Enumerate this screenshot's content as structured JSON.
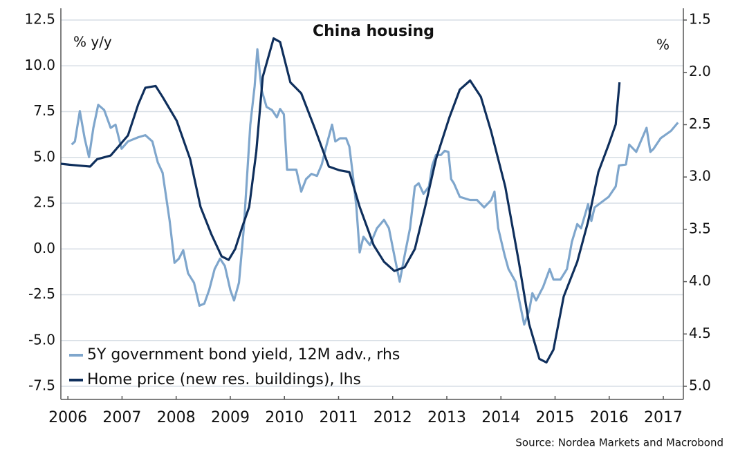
{
  "chart_data": {
    "type": "line",
    "title": "China housing",
    "ylabel": "% y/y",
    "y2label": "%",
    "source": "Source: Nordea Markets and Macrobond",
    "xlim": [
      2006.37,
      2017.87
    ],
    "xticks": [
      {
        "value": 2006.5,
        "label": "2006"
      },
      {
        "value": 2007.5,
        "label": "2007"
      },
      {
        "value": 2008.5,
        "label": "2008"
      },
      {
        "value": 2009.5,
        "label": "2009"
      },
      {
        "value": 2010.5,
        "label": "2010"
      },
      {
        "value": 2011.5,
        "label": "2011"
      },
      {
        "value": 2012.5,
        "label": "2012"
      },
      {
        "value": 2013.5,
        "label": "2013"
      },
      {
        "value": 2014.5,
        "label": "2014"
      },
      {
        "value": 2015.5,
        "label": "2015"
      },
      {
        "value": 2016.5,
        "label": "2016"
      },
      {
        "value": 2017.5,
        "label": "2017"
      }
    ],
    "ylim": [
      -7.5,
      12.5
    ],
    "yticks": [
      {
        "value": -7.5,
        "label": "-7.5"
      },
      {
        "value": -5,
        "label": "-5.0"
      },
      {
        "value": -2.5,
        "label": "-2.5"
      },
      {
        "value": 0,
        "label": "0.0"
      },
      2.5,
      {
        "value": 5,
        "label": "5.0"
      },
      7.5,
      {
        "value": 10,
        "label": "10.0"
      },
      12.5
    ],
    "y2lim": [
      5.0,
      1.5
    ],
    "y2ticks": [
      1.5,
      {
        "value": 2,
        "label": "2.0"
      },
      2.5,
      {
        "value": 3,
        "label": "3.0"
      },
      3.5,
      {
        "value": 4,
        "label": "4.0"
      },
      4.5,
      {
        "value": 5,
        "label": "5.0"
      }
    ],
    "grid": true,
    "legend": "lower left",
    "series": [
      {
        "name": "5Y government bond yield, 12M adv., rhs",
        "color": "#7fa6cc",
        "axis": "y2",
        "x": [
          2006.57,
          2006.63,
          2006.72,
          2006.81,
          2006.89,
          2006.97,
          2007.06,
          2007.17,
          2007.29,
          2007.38,
          2007.49,
          2007.61,
          2007.8,
          2007.93,
          2008.06,
          2008.16,
          2008.25,
          2008.38,
          2008.47,
          2008.55,
          2008.63,
          2008.72,
          2008.83,
          2008.93,
          2009.02,
          2009.11,
          2009.21,
          2009.31,
          2009.4,
          2009.5,
          2009.57,
          2009.66,
          2009.75,
          2009.87,
          2009.95,
          2010.0,
          2010.08,
          2010.17,
          2010.27,
          2010.36,
          2010.42,
          2010.49,
          2010.55,
          2010.61,
          2010.72,
          2010.81,
          2010.9,
          2011.0,
          2011.1,
          2011.19,
          2011.28,
          2011.38,
          2011.44,
          2011.53,
          2011.64,
          2011.7,
          2011.76,
          2011.83,
          2011.89,
          2011.96,
          2012.08,
          2012.21,
          2012.34,
          2012.43,
          2012.53,
          2012.63,
          2012.72,
          2012.82,
          2012.91,
          2012.98,
          2013.07,
          2013.17,
          2013.23,
          2013.3,
          2013.39,
          2013.46,
          2013.53,
          2013.58,
          2013.63,
          2013.74,
          2013.93,
          2014.06,
          2014.19,
          2014.32,
          2014.38,
          2014.45,
          2014.57,
          2014.64,
          2014.77,
          2014.85,
          2014.93,
          2015.02,
          2015.08,
          2015.15,
          2015.28,
          2015.4,
          2015.47,
          2015.6,
          2015.72,
          2015.81,
          2015.91,
          2015.98,
          2016.11,
          2016.17,
          2016.23,
          2016.36,
          2016.49,
          2016.62,
          2016.68,
          2016.81,
          2016.87,
          2017.0,
          2017.19,
          2017.26,
          2017.32,
          2017.45,
          2017.64,
          2017.77
        ],
        "values": [
          2.69,
          2.66,
          2.37,
          2.63,
          2.81,
          2.53,
          2.31,
          2.36,
          2.53,
          2.5,
          2.73,
          2.66,
          2.62,
          2.6,
          2.66,
          2.86,
          2.96,
          3.42,
          3.82,
          3.78,
          3.7,
          3.92,
          4.01,
          4.23,
          4.21,
          4.08,
          3.88,
          3.78,
          3.85,
          4.08,
          4.18,
          4.01,
          3.49,
          2.5,
          2.13,
          1.78,
          2.17,
          2.33,
          2.36,
          2.43,
          2.35,
          2.4,
          2.93,
          2.93,
          2.93,
          3.14,
          3.02,
          2.97,
          2.99,
          2.88,
          2.69,
          2.5,
          2.66,
          2.63,
          2.63,
          2.71,
          2.96,
          3.29,
          3.72,
          3.57,
          3.65,
          3.49,
          3.41,
          3.49,
          3.75,
          4.0,
          3.75,
          3.49,
          3.09,
          3.06,
          3.16,
          3.09,
          2.89,
          2.79,
          2.79,
          2.75,
          2.76,
          3.02,
          3.06,
          3.19,
          3.22,
          3.22,
          3.29,
          3.22,
          3.14,
          3.49,
          3.75,
          3.88,
          4.0,
          4.21,
          4.41,
          4.28,
          4.11,
          4.18,
          4.05,
          3.88,
          3.98,
          3.98,
          3.88,
          3.62,
          3.45,
          3.49,
          3.26,
          3.42,
          3.29,
          3.24,
          3.19,
          3.09,
          2.89,
          2.88,
          2.69,
          2.76,
          2.53,
          2.76,
          2.73,
          2.63,
          2.56,
          2.48
        ]
      },
      {
        "name": "Home price (new res. buildings), lhs",
        "color": "#0f2f5c",
        "x": [
          2006.37,
          2006.53,
          2006.91,
          2007.04,
          2007.29,
          2007.61,
          2007.8,
          2007.93,
          2008.12,
          2008.25,
          2008.51,
          2008.76,
          2008.95,
          2009.15,
          2009.34,
          2009.47,
          2009.59,
          2009.72,
          2009.85,
          2009.98,
          2010.1,
          2010.3,
          2010.42,
          2010.61,
          2010.81,
          2011.06,
          2011.32,
          2011.51,
          2011.7,
          2011.89,
          2012.15,
          2012.34,
          2012.53,
          2012.72,
          2012.91,
          2013.1,
          2013.3,
          2013.55,
          2013.74,
          2013.93,
          2014.13,
          2014.32,
          2014.58,
          2014.83,
          2015.02,
          2015.21,
          2015.34,
          2015.47,
          2015.66,
          2015.91,
          2016.11,
          2016.3,
          2016.49,
          2016.62,
          2016.69
        ],
        "values": [
          4.65,
          4.6,
          4.5,
          4.9,
          5.1,
          6.2,
          7.9,
          8.8,
          8.9,
          8.3,
          7.0,
          4.9,
          2.3,
          0.8,
          -0.4,
          -0.6,
          0.0,
          1.2,
          2.3,
          5.3,
          9.4,
          11.5,
          11.3,
          9.1,
          8.5,
          6.6,
          4.5,
          4.3,
          4.2,
          2.3,
          0.2,
          -0.7,
          -1.2,
          -1.0,
          0.0,
          2.3,
          4.9,
          7.2,
          8.7,
          9.2,
          8.3,
          6.4,
          3.4,
          -0.7,
          -4.1,
          -6.0,
          -6.2,
          -5.5,
          -2.6,
          -0.7,
          1.5,
          4.2,
          5.7,
          6.8,
          9.1
        ]
      }
    ]
  }
}
